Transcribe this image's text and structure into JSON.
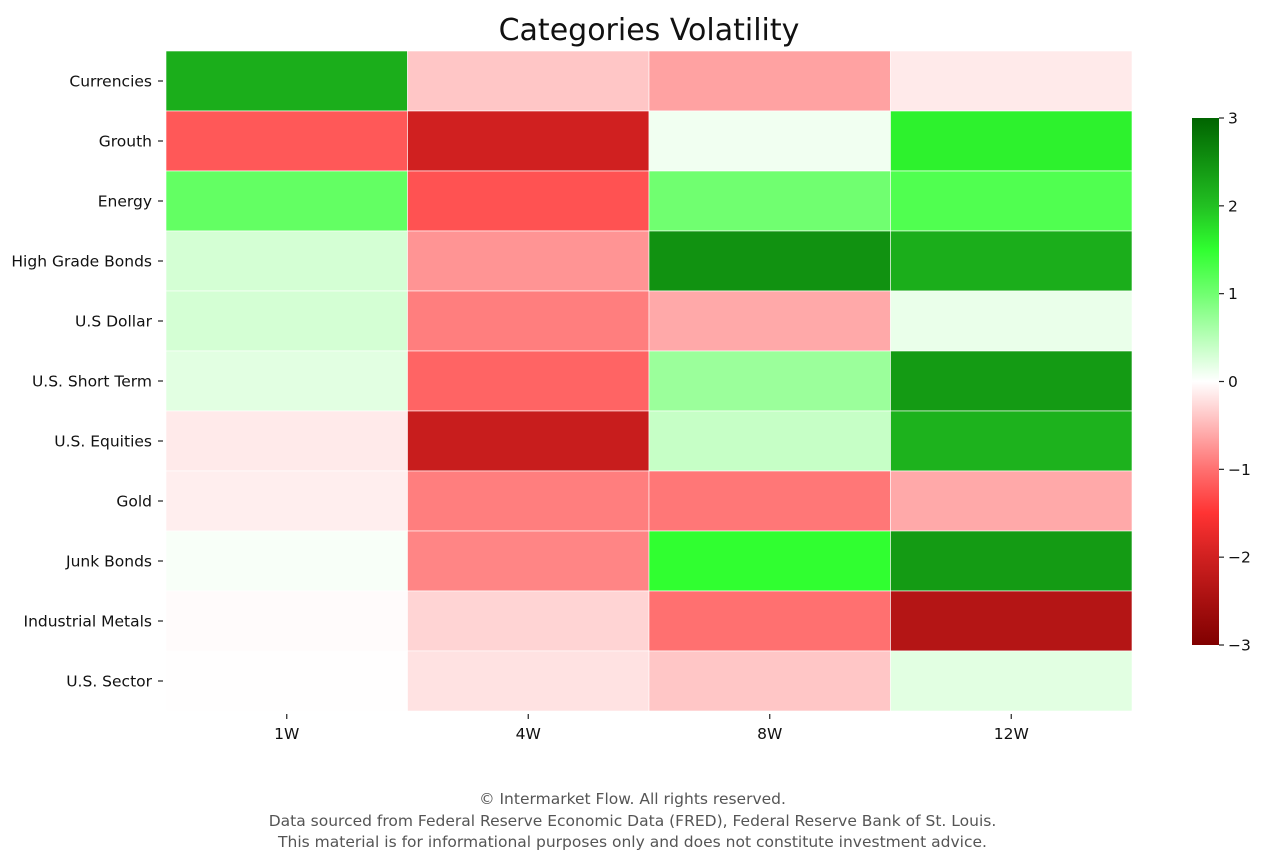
{
  "chart_data": {
    "type": "heatmap",
    "title": "Categories Volatility",
    "columns": [
      "1W",
      "4W",
      "8W",
      "12W"
    ],
    "rows": [
      "Currencies",
      "Grouth",
      "Energy",
      "High Grade Bonds",
      "U.S Dollar",
      "U.S. Short Term",
      "U.S. Equities",
      "Gold",
      "Junk Bonds",
      "Industrial Metals",
      "U.S. Sector"
    ],
    "values": [
      [
        2.2,
        -0.4,
        -0.65,
        -0.15
      ],
      [
        -1.2,
        -2.0,
        0.1,
        1.6
      ],
      [
        1.1,
        -1.25,
        1.0,
        1.25
      ],
      [
        0.3,
        -0.75,
        2.5,
        2.2
      ],
      [
        0.3,
        -0.9,
        -0.6,
        0.15
      ],
      [
        0.2,
        -1.1,
        0.7,
        2.4
      ],
      [
        -0.15,
        -2.1,
        0.4,
        2.15
      ],
      [
        -0.12,
        -0.9,
        -0.95,
        -0.6
      ],
      [
        0.05,
        -0.85,
        1.5,
        2.4
      ],
      [
        -0.03,
        -0.3,
        -1.0,
        -2.35
      ],
      [
        -0.01,
        -0.2,
        -0.4,
        0.2
      ]
    ],
    "colorbar": {
      "min": -3,
      "max": 3,
      "ticks": [
        "3",
        "2",
        "1",
        "0",
        "−1",
        "−2",
        "−3"
      ],
      "tick_values": [
        3,
        2,
        1,
        0,
        -1,
        -2,
        -3
      ]
    },
    "colormap": [
      [
        -3,
        "#800000"
      ],
      [
        -2,
        "#d02020"
      ],
      [
        -1.5,
        "#ff3333"
      ],
      [
        -1,
        "#ff7070"
      ],
      [
        0,
        "#ffffff"
      ],
      [
        1,
        "#70ff70"
      ],
      [
        1.5,
        "#30ff30"
      ],
      [
        2,
        "#22c022"
      ],
      [
        3,
        "#006400"
      ]
    ]
  },
  "footer": {
    "line1": "© Intermarket Flow. All rights reserved.",
    "line2": "Data sourced from Federal Reserve Economic Data (FRED), Federal Reserve Bank of St. Louis.",
    "line3": "This material is for informational purposes only and does not constitute investment advice."
  }
}
